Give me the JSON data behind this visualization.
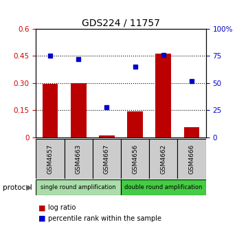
{
  "title": "GDS224 / 11757",
  "categories": [
    "GSM4657",
    "GSM4663",
    "GSM4667",
    "GSM4656",
    "GSM4662",
    "GSM4666"
  ],
  "log_ratio": [
    0.295,
    0.3,
    0.01,
    0.145,
    0.465,
    0.055
  ],
  "percentile_rank": [
    75.0,
    72.0,
    28.0,
    65.0,
    76.0,
    52.0
  ],
  "bar_color": "#bb0000",
  "dot_color": "#0000cc",
  "ylim_left": [
    0,
    0.6
  ],
  "ylim_right": [
    0,
    100
  ],
  "yticks_left": [
    0,
    0.15,
    0.3,
    0.45,
    0.6
  ],
  "ytick_labels_left": [
    "0",
    "0.15",
    "0.30",
    "0.45",
    "0.6"
  ],
  "yticks_right": [
    0,
    25,
    50,
    75,
    100
  ],
  "ytick_labels_right": [
    "0",
    "25",
    "50",
    "75",
    "100%"
  ],
  "protocol_groups": [
    {
      "label": "single round amplification",
      "start": 0,
      "end": 3,
      "color": "#aaddaa"
    },
    {
      "label": "double round amplification",
      "start": 3,
      "end": 6,
      "color": "#44cc44"
    }
  ],
  "protocol_label": "protocol",
  "legend_items": [
    {
      "color": "#bb0000",
      "label": "log ratio"
    },
    {
      "color": "#0000cc",
      "label": "percentile rank within the sample"
    }
  ],
  "tick_label_color_left": "#cc0000",
  "tick_label_color_right": "#0000cc",
  "gsm_box_color": "#cccccc",
  "title_fontsize": 10
}
